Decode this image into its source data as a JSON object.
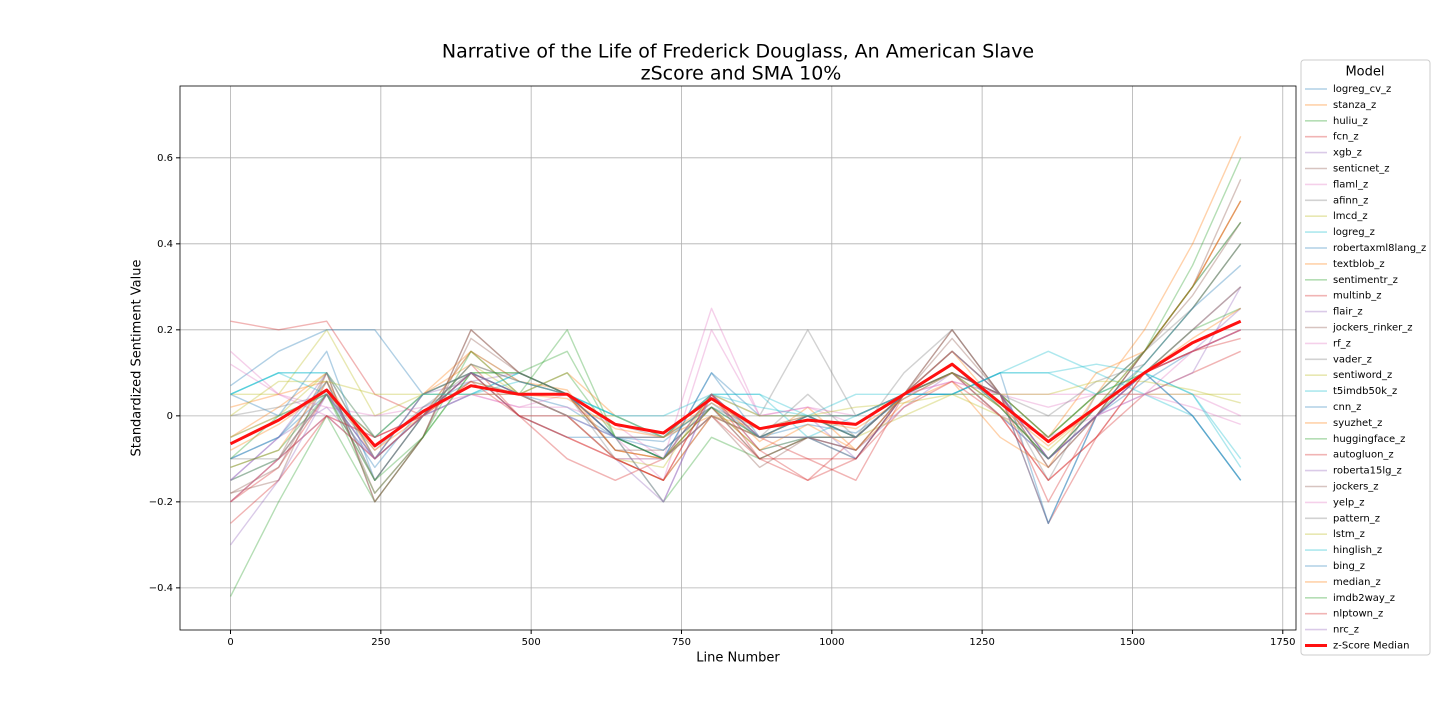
{
  "chart_data": {
    "type": "line",
    "title": "Narrative of the Life of Frederick Douglass, An American Slave",
    "subtitle": "zScore and SMA 10%",
    "x_label": "Line Number",
    "y_label": "Standardized Sentiment Value",
    "legend_title": "Model",
    "legend_position": "outside right",
    "grid": true,
    "line_alpha": 0.35,
    "xlim": [
      -84,
      1772
    ],
    "xticks": [
      0,
      250,
      500,
      750,
      1000,
      1250,
      1500,
      1750
    ],
    "ylim": [
      -0.498,
      0.767
    ],
    "yticks": [
      -0.4,
      -0.2,
      0.0,
      0.2,
      0.4,
      0.6
    ],
    "x": [
      0,
      80,
      160,
      240,
      320,
      400,
      480,
      560,
      640,
      720,
      800,
      880,
      960,
      1040,
      1120,
      1200,
      1280,
      1360,
      1440,
      1520,
      1600,
      1680
    ],
    "series": [
      {
        "name": "logreg_cv_z",
        "color": "#1f77b4",
        "values": [
          -0.1,
          -0.05,
          0.05,
          -0.12,
          0.02,
          0.08,
          0.05,
          0.02,
          -0.05,
          -0.06,
          0.03,
          -0.05,
          -0.02,
          -0.04,
          0.04,
          0.1,
          0.0,
          -0.1,
          0.0,
          0.08,
          0.15,
          0.2
        ]
      },
      {
        "name": "stanza_z",
        "color": "#ff7f0e",
        "values": [
          -0.05,
          0.02,
          0.1,
          -0.05,
          0.05,
          0.12,
          0.08,
          0.06,
          -0.08,
          -0.1,
          0.05,
          -0.06,
          0.02,
          -0.08,
          0.03,
          0.08,
          -0.05,
          -0.12,
          0.05,
          0.2,
          0.4,
          0.65
        ]
      },
      {
        "name": "huliu_z",
        "color": "#2ca02c",
        "values": [
          -0.42,
          -0.2,
          0.0,
          -0.2,
          -0.05,
          0.1,
          0.1,
          0.15,
          -0.05,
          -0.2,
          -0.05,
          -0.1,
          -0.05,
          -0.05,
          0.05,
          0.15,
          0.05,
          -0.05,
          0.05,
          0.15,
          0.35,
          0.6
        ]
      },
      {
        "name": "fcn_z",
        "color": "#d62728",
        "values": [
          0.22,
          0.2,
          0.22,
          0.05,
          0.0,
          0.1,
          0.0,
          -0.1,
          -0.15,
          -0.1,
          0.0,
          -0.05,
          -0.1,
          -0.15,
          0.05,
          0.15,
          0.05,
          -0.25,
          -0.05,
          0.05,
          0.1,
          0.15
        ]
      },
      {
        "name": "xgb_z",
        "color": "#9467bd",
        "values": [
          -0.15,
          -0.1,
          0.0,
          -0.1,
          0.0,
          0.05,
          0.05,
          0.0,
          -0.1,
          -0.2,
          0.05,
          -0.08,
          -0.05,
          -0.08,
          0.02,
          0.1,
          0.0,
          -0.1,
          0.02,
          0.1,
          0.2,
          0.3
        ]
      },
      {
        "name": "senticnet_z",
        "color": "#8c564b",
        "values": [
          -0.18,
          -0.15,
          0.1,
          -0.2,
          -0.05,
          0.2,
          0.1,
          0.05,
          -0.05,
          -0.1,
          0.0,
          -0.12,
          -0.05,
          -0.1,
          0.05,
          0.2,
          0.05,
          -0.1,
          0.0,
          0.15,
          0.3,
          0.55
        ]
      },
      {
        "name": "flaml_z",
        "color": "#e377c2",
        "values": [
          0.15,
          0.05,
          0.0,
          -0.05,
          0.0,
          0.05,
          0.02,
          0.05,
          -0.05,
          -0.15,
          0.2,
          0.0,
          0.02,
          -0.02,
          0.05,
          0.08,
          0.05,
          0.02,
          0.05,
          0.05,
          0.05,
          0.0
        ]
      },
      {
        "name": "afinn_z",
        "color": "#7f7f7f",
        "values": [
          -0.1,
          -0.1,
          0.05,
          -0.15,
          0.0,
          0.15,
          0.08,
          0.05,
          -0.1,
          -0.1,
          0.05,
          -0.05,
          0.05,
          -0.05,
          0.1,
          0.2,
          0.05,
          -0.15,
          0.05,
          0.15,
          0.3,
          0.45
        ]
      },
      {
        "name": "lmcd_z",
        "color": "#bcbd22",
        "values": [
          0.05,
          0.05,
          0.2,
          0.0,
          0.05,
          0.1,
          0.05,
          0.0,
          -0.1,
          -0.15,
          0.0,
          -0.05,
          0.0,
          -0.05,
          0.0,
          0.05,
          0.0,
          -0.05,
          0.05,
          0.05,
          0.05,
          0.05
        ]
      },
      {
        "name": "logreg_z",
        "color": "#17becf",
        "values": [
          0.05,
          0.1,
          0.1,
          -0.1,
          0.0,
          0.05,
          0.1,
          0.05,
          0.0,
          0.0,
          0.05,
          0.05,
          0.0,
          0.05,
          0.05,
          0.05,
          0.1,
          0.15,
          0.1,
          0.05,
          0.0,
          -0.15
        ]
      },
      {
        "name": "robertaxml8lang_z",
        "color": "#1f77b4",
        "values": [
          0.07,
          0.15,
          0.2,
          0.2,
          0.05,
          0.1,
          0.0,
          -0.05,
          -0.05,
          -0.1,
          0.1,
          0.0,
          0.0,
          -0.05,
          0.05,
          0.05,
          0.1,
          -0.25,
          0.0,
          0.1,
          0.0,
          -0.15
        ]
      },
      {
        "name": "textblob_z",
        "color": "#ff7f0e",
        "values": [
          0.02,
          0.05,
          0.08,
          -0.1,
          0.05,
          0.15,
          0.05,
          0.1,
          0.0,
          -0.05,
          0.0,
          -0.03,
          0.0,
          0.0,
          0.05,
          0.1,
          0.05,
          -0.05,
          0.1,
          0.15,
          0.3,
          0.5
        ]
      },
      {
        "name": "sentimentr_z",
        "color": "#2ca02c",
        "values": [
          -0.15,
          -0.1,
          0.05,
          -0.18,
          -0.05,
          0.1,
          0.05,
          0.1,
          -0.05,
          -0.05,
          0.02,
          -0.08,
          -0.05,
          -0.05,
          0.05,
          0.12,
          0.02,
          -0.1,
          0.0,
          0.12,
          0.25,
          0.4
        ]
      },
      {
        "name": "multinb_z",
        "color": "#d62728",
        "values": [
          -0.2,
          -0.12,
          0.05,
          -0.05,
          0.0,
          0.12,
          0.0,
          -0.05,
          -0.1,
          -0.15,
          0.0,
          -0.1,
          -0.15,
          -0.05,
          0.05,
          0.1,
          0.0,
          -0.15,
          -0.05,
          0.1,
          0.15,
          0.2
        ]
      },
      {
        "name": "flair_z",
        "color": "#9467bd",
        "values": [
          -0.15,
          -0.05,
          0.02,
          -0.1,
          0.05,
          0.08,
          0.1,
          0.05,
          -0.05,
          -0.1,
          0.05,
          -0.05,
          0.0,
          -0.1,
          0.05,
          0.1,
          0.05,
          -0.1,
          0.0,
          0.05,
          0.1,
          0.3
        ]
      },
      {
        "name": "jockers_rinker_z",
        "color": "#8c564b",
        "values": [
          -0.18,
          -0.12,
          0.08,
          -0.18,
          -0.05,
          0.18,
          0.1,
          0.05,
          -0.08,
          -0.1,
          0.02,
          -0.1,
          -0.05,
          -0.08,
          0.05,
          0.18,
          0.05,
          -0.12,
          0.0,
          0.15,
          0.3,
          0.5
        ]
      },
      {
        "name": "rf_z",
        "color": "#e377c2",
        "values": [
          0.12,
          0.05,
          0.02,
          0.0,
          0.02,
          0.05,
          0.02,
          0.02,
          -0.02,
          -0.1,
          0.25,
          0.0,
          0.02,
          0.0,
          0.05,
          0.08,
          0.05,
          0.05,
          0.05,
          0.05,
          0.02,
          -0.02
        ]
      },
      {
        "name": "vader_z",
        "color": "#7f7f7f",
        "values": [
          -0.05,
          0.0,
          0.05,
          -0.1,
          0.0,
          0.1,
          0.05,
          0.05,
          -0.05,
          -0.05,
          0.05,
          0.0,
          0.2,
          0.0,
          0.05,
          0.15,
          0.05,
          -0.05,
          0.05,
          0.15,
          0.25,
          0.4
        ]
      },
      {
        "name": "sentiword_z",
        "color": "#bcbd22",
        "values": [
          -0.05,
          0.0,
          0.1,
          -0.1,
          0.0,
          0.12,
          0.05,
          0.0,
          -0.1,
          -0.12,
          0.05,
          -0.05,
          0.0,
          -0.05,
          0.05,
          0.1,
          0.0,
          -0.08,
          0.02,
          0.1,
          0.2,
          0.3
        ]
      },
      {
        "name": "t5imdb50k_z",
        "color": "#17becf",
        "values": [
          0.05,
          0.1,
          0.05,
          -0.1,
          0.05,
          0.05,
          0.1,
          0.05,
          0.0,
          -0.05,
          0.05,
          0.05,
          -0.05,
          0.0,
          0.05,
          0.05,
          0.1,
          0.1,
          0.05,
          0.1,
          0.05,
          -0.12
        ]
      },
      {
        "name": "cnn_z",
        "color": "#1f77b4",
        "values": [
          0.05,
          0.0,
          0.15,
          -0.15,
          0.0,
          0.1,
          0.05,
          0.0,
          -0.05,
          -0.1,
          0.1,
          -0.05,
          -0.05,
          -0.1,
          0.05,
          0.05,
          0.05,
          -0.25,
          0.0,
          0.1,
          0.0,
          -0.15
        ]
      },
      {
        "name": "syuzhet_z",
        "color": "#ff7f0e",
        "values": [
          -0.12,
          -0.08,
          0.08,
          -0.15,
          0.0,
          0.15,
          0.08,
          0.05,
          -0.08,
          -0.1,
          0.02,
          -0.08,
          -0.02,
          -0.08,
          0.05,
          0.15,
          0.02,
          -0.1,
          0.02,
          0.15,
          0.3,
          0.5
        ]
      },
      {
        "name": "huggingface_z",
        "color": "#2ca02c",
        "values": [
          -0.1,
          0.0,
          0.05,
          -0.05,
          0.05,
          0.1,
          0.1,
          0.05,
          -0.05,
          -0.1,
          0.0,
          -0.05,
          0.0,
          -0.05,
          0.05,
          0.1,
          0.05,
          -0.05,
          0.05,
          0.1,
          0.2,
          0.25
        ]
      },
      {
        "name": "autogluon_z",
        "color": "#d62728",
        "values": [
          -0.2,
          -0.1,
          0.0,
          -0.05,
          0.0,
          0.1,
          0.0,
          0.0,
          -0.1,
          -0.15,
          0.05,
          -0.1,
          -0.1,
          -0.1,
          0.05,
          0.1,
          0.05,
          -0.2,
          0.0,
          0.1,
          0.15,
          0.2
        ]
      },
      {
        "name": "roberta15lg_z",
        "color": "#9467bd",
        "values": [
          -0.15,
          -0.05,
          0.1,
          -0.1,
          0.05,
          0.1,
          0.05,
          0.05,
          -0.05,
          -0.05,
          0.05,
          -0.05,
          0.0,
          -0.05,
          0.05,
          0.1,
          0.05,
          -0.1,
          0.0,
          0.1,
          0.15,
          0.25
        ]
      },
      {
        "name": "jockers_z",
        "color": "#8c564b",
        "values": [
          -0.2,
          -0.1,
          0.1,
          -0.2,
          -0.05,
          0.2,
          0.1,
          0.05,
          -0.08,
          -0.08,
          0.02,
          -0.1,
          -0.05,
          -0.08,
          0.05,
          0.2,
          0.05,
          -0.12,
          0.0,
          0.15,
          0.28,
          0.45
        ]
      },
      {
        "name": "yelp_z",
        "color": "#e377c2",
        "values": [
          -0.2,
          -0.1,
          0.05,
          -0.1,
          0.0,
          0.05,
          0.05,
          0.0,
          -0.1,
          -0.1,
          0.0,
          -0.05,
          -0.05,
          -0.05,
          0.05,
          0.1,
          0.0,
          -0.05,
          0.0,
          0.05,
          0.15,
          0.2
        ]
      },
      {
        "name": "pattern_z",
        "color": "#7f7f7f",
        "values": [
          0.0,
          0.02,
          0.05,
          -0.08,
          0.02,
          0.1,
          0.05,
          0.05,
          -0.02,
          -0.05,
          0.02,
          -0.03,
          0.0,
          0.0,
          0.05,
          0.1,
          0.05,
          0.0,
          0.08,
          0.12,
          0.25,
          0.4
        ]
      },
      {
        "name": "lstm_z",
        "color": "#bcbd22",
        "values": [
          0.0,
          0.08,
          0.08,
          0.05,
          0.05,
          0.05,
          0.05,
          0.0,
          0.0,
          -0.05,
          0.05,
          0.0,
          0.0,
          0.02,
          0.03,
          0.05,
          0.05,
          0.05,
          0.08,
          0.08,
          0.06,
          0.03
        ]
      },
      {
        "name": "hinglish_z",
        "color": "#17becf",
        "values": [
          0.05,
          0.1,
          0.1,
          -0.05,
          0.05,
          0.05,
          0.08,
          0.05,
          0.0,
          -0.05,
          0.05,
          0.02,
          0.0,
          0.0,
          0.05,
          0.05,
          0.1,
          0.1,
          0.12,
          0.1,
          0.05,
          -0.1
        ]
      },
      {
        "name": "bing_z",
        "color": "#1f77b4",
        "values": [
          -0.1,
          -0.05,
          0.08,
          -0.15,
          0.0,
          0.12,
          0.08,
          0.05,
          -0.05,
          -0.08,
          0.02,
          -0.05,
          0.0,
          -0.05,
          0.05,
          0.12,
          0.02,
          -0.1,
          0.02,
          0.12,
          0.25,
          0.35
        ]
      },
      {
        "name": "median_z",
        "color": "#ff7f0e",
        "values": [
          -0.08,
          -0.02,
          0.06,
          -0.08,
          0.0,
          0.08,
          0.05,
          0.04,
          -0.03,
          -0.05,
          0.03,
          -0.03,
          -0.01,
          -0.03,
          0.04,
          0.1,
          0.02,
          -0.07,
          0.02,
          0.1,
          0.18,
          0.25
        ]
      },
      {
        "name": "imdb2way_z",
        "color": "#2ca02c",
        "values": [
          -0.12,
          -0.08,
          0.05,
          -0.15,
          -0.05,
          0.15,
          0.05,
          0.2,
          -0.05,
          -0.1,
          0.02,
          -0.05,
          -0.05,
          -0.05,
          0.05,
          0.1,
          0.02,
          -0.1,
          0.02,
          0.15,
          0.3,
          0.45
        ]
      },
      {
        "name": "nlptown_z",
        "color": "#d62728",
        "values": [
          -0.25,
          -0.15,
          0.0,
          -0.1,
          0.0,
          0.08,
          0.0,
          -0.05,
          -0.1,
          -0.15,
          0.05,
          -0.08,
          -0.15,
          -0.1,
          0.02,
          0.08,
          0.0,
          -0.15,
          -0.05,
          0.1,
          0.15,
          0.18
        ]
      },
      {
        "name": "nrc_z",
        "color": "#9467bd",
        "values": [
          -0.3,
          -0.15,
          0.05,
          -0.1,
          0.0,
          0.1,
          0.05,
          0.0,
          -0.05,
          -0.2,
          0.05,
          -0.05,
          -0.05,
          -0.05,
          0.05,
          0.15,
          0.05,
          -0.1,
          0.0,
          0.1,
          0.2,
          0.3
        ]
      },
      {
        "name": "z-Score Median",
        "color": "#ff1010",
        "emphasis": true,
        "values": [
          -0.065,
          -0.01,
          0.06,
          -0.07,
          0.01,
          0.07,
          0.05,
          0.05,
          -0.02,
          -0.04,
          0.04,
          -0.03,
          -0.01,
          -0.02,
          0.05,
          0.12,
          0.03,
          -0.06,
          0.02,
          0.1,
          0.17,
          0.22
        ]
      }
    ]
  }
}
